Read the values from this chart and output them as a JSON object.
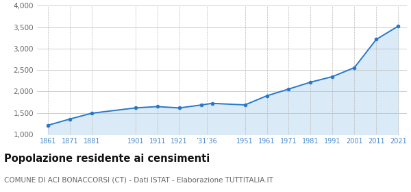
{
  "years": [
    1861,
    1871,
    1881,
    1901,
    1911,
    1921,
    1931,
    1936,
    1951,
    1961,
    1971,
    1981,
    1991,
    2001,
    2011,
    2021
  ],
  "population": [
    1213,
    1358,
    1494,
    1618,
    1649,
    1617,
    1686,
    1724,
    1688,
    1900,
    2058,
    2218,
    2348,
    2557,
    3215,
    3524
  ],
  "ylim": [
    1000,
    4000
  ],
  "yticks": [
    1000,
    1500,
    2000,
    2500,
    3000,
    3500,
    4000
  ],
  "xlim_left": 1856,
  "xlim_right": 2025,
  "line_color": "#2878c8",
  "fill_color": "#daeaf7",
  "marker_color": "#2878c8",
  "grid_color_x": "#bbbbbb",
  "grid_color_y": "#bbbbbb",
  "bg_color": "#ffffff",
  "x_tick_positions": [
    1861,
    1871,
    1881,
    1901,
    1911,
    1921,
    1933.5,
    1951,
    1961,
    1971,
    1981,
    1991,
    2001,
    2011,
    2021
  ],
  "x_tick_labels": [
    "1861",
    "1871",
    "1881",
    "1901",
    "1911",
    "1921",
    "’31’36",
    "1951",
    "1961",
    "1971",
    "1981",
    "1991",
    "2001",
    "2011",
    "2021"
  ],
  "title": "Popolazione residente ai censimenti",
  "subtitle": "COMUNE DI ACI BONACCORSI (CT) - Dati ISTAT - Elaborazione TUTTITALIA.IT",
  "title_fontsize": 10.5,
  "subtitle_fontsize": 7.5,
  "tick_label_color": "#4488cc",
  "ytick_label_color": "#666666"
}
